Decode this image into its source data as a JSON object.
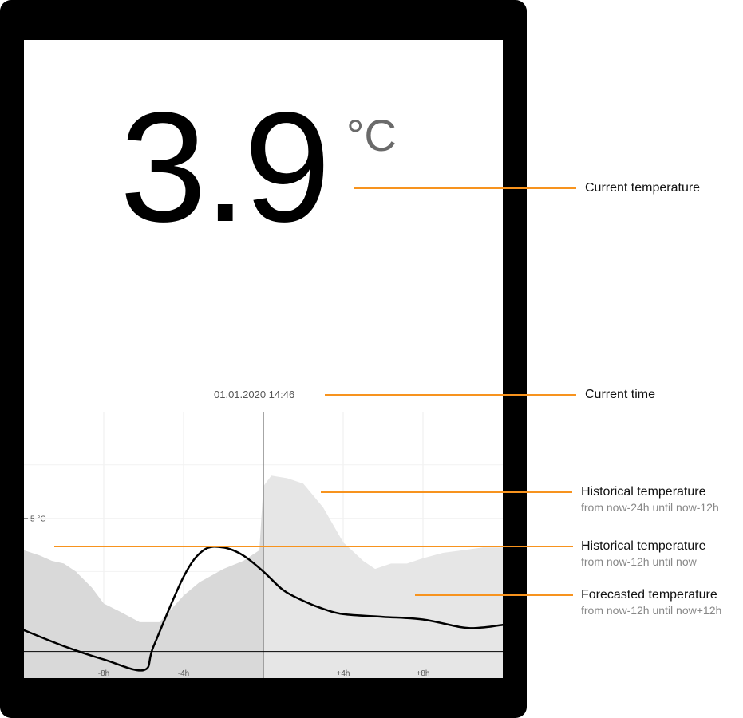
{
  "display": {
    "temperature": "3.9",
    "unit": "°C",
    "datetime": "01.01.2020 14:46"
  },
  "annotations": {
    "current_temperature": {
      "title": "Current temperature"
    },
    "current_time": {
      "title": "Current time"
    },
    "historical_24h": {
      "title": "Historical temperature",
      "subtitle": "from now-24h until now-12h"
    },
    "historical_12h": {
      "title": "Historical temperature",
      "subtitle": "from now-12h until now"
    },
    "forecast": {
      "title": "Forecasted temperature",
      "subtitle": "from now-12h until now+12h"
    }
  },
  "colors": {
    "accent": "#f7931e",
    "history_fill_past": "#d9d9d9",
    "history_fill_future": "#e6e6e6",
    "curve": "#000000"
  },
  "chart_data": {
    "type": "area",
    "x_ticks": [
      {
        "x": -8,
        "label": "-8h"
      },
      {
        "x": -4,
        "label": "-4h"
      },
      {
        "x": 4,
        "label": "+4h"
      },
      {
        "x": 8,
        "label": "+8h"
      }
    ],
    "xlim": [
      -12,
      12
    ],
    "ylim": [
      -1,
      9
    ],
    "y_reference": {
      "y": 5,
      "label": "5 °C"
    },
    "now_x": 0,
    "series": [
      {
        "name": "Historical temperature",
        "style": "fill",
        "x": [
          -12,
          -11.2,
          -10.6,
          -10,
          -9.4,
          -8.6,
          -8,
          -7.2,
          -6.2,
          -5.2,
          -4.6,
          -4,
          -3.2,
          -2,
          -1,
          -0.2,
          0,
          0.4,
          1.2,
          2,
          3,
          4,
          5,
          5.6,
          6.4,
          7.2,
          8,
          9,
          10,
          11,
          12
        ],
        "y": [
          3.8,
          3.6,
          3.4,
          3.3,
          3.0,
          2.4,
          1.8,
          1.5,
          1.1,
          1.1,
          1.6,
          2.1,
          2.6,
          3.1,
          3.4,
          3.8,
          6.2,
          6.6,
          6.5,
          6.3,
          5.4,
          4.1,
          3.4,
          3.1,
          3.3,
          3.3,
          3.5,
          3.7,
          3.8,
          3.9,
          3.9
        ]
      },
      {
        "name": "Forecasted temperature",
        "style": "line",
        "x": [
          -12,
          -10,
          -8,
          -6,
          -5.5,
          -4,
          -3,
          -2,
          -1,
          0,
          1,
          2,
          3,
          4,
          6,
          8,
          10,
          11,
          12
        ],
        "y": [
          0.8,
          0.2,
          -0.3,
          -0.7,
          0.2,
          2.8,
          3.8,
          3.9,
          3.6,
          3.0,
          2.3,
          1.9,
          1.6,
          1.4,
          1.3,
          1.2,
          0.9,
          0.9,
          1.0
        ]
      }
    ]
  }
}
